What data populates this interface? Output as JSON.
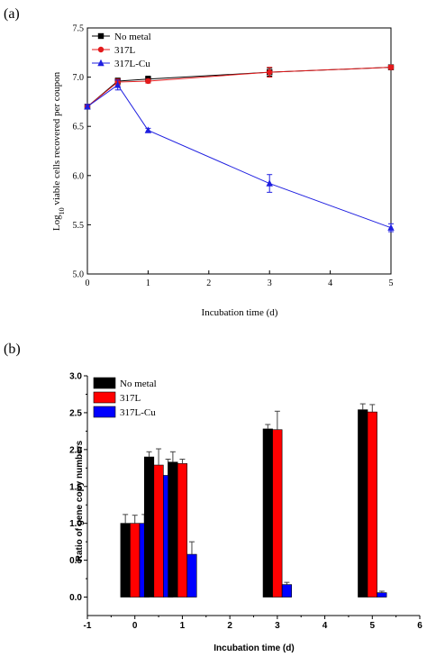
{
  "chart_data": [
    {
      "panel_label": "(a)",
      "type": "line",
      "xlabel": "Incubation time (d)",
      "ylabel": "Log10 viable cells recovered per coupon",
      "ylabel_main": "Log",
      "ylabel_sub": "10",
      "ylabel_rest": " viable cells recovered per coupon",
      "xlim": [
        0,
        5
      ],
      "ylim": [
        5.0,
        7.5
      ],
      "xticks": [
        0,
        1,
        2,
        3,
        4,
        5
      ],
      "yticks": [
        5.0,
        5.5,
        6.0,
        6.5,
        7.0,
        7.5
      ],
      "legend_position": "top-left",
      "series": [
        {
          "name": "No metal",
          "color": "#000000",
          "marker": "square",
          "x": [
            0,
            0.5,
            1,
            3,
            5
          ],
          "y": [
            6.7,
            6.96,
            6.98,
            7.05,
            7.1
          ],
          "err": [
            0.02,
            0.03,
            0.03,
            0.04,
            0.02
          ]
        },
        {
          "name": "317L",
          "color": "#e31a1c",
          "marker": "circle",
          "x": [
            0,
            0.5,
            1,
            3,
            5
          ],
          "y": [
            6.7,
            6.95,
            6.96,
            7.05,
            7.1
          ],
          "err": [
            0.02,
            0.03,
            0.02,
            0.05,
            0.02
          ]
        },
        {
          "name": "317L-Cu",
          "color": "#1f1fe0",
          "marker": "triangle",
          "x": [
            0,
            0.5,
            1,
            3,
            5
          ],
          "y": [
            6.7,
            6.92,
            6.46,
            5.92,
            5.47
          ],
          "err": [
            0.02,
            0.05,
            0.02,
            0.09,
            0.04
          ]
        }
      ]
    },
    {
      "panel_label": "(b)",
      "type": "bar",
      "xlabel": "Incubation time (d)",
      "ylabel": "Ratio of gene copy numbers",
      "xlim": [
        -1,
        6
      ],
      "ylim": [
        -0.25,
        3.0
      ],
      "xticks": [
        -1,
        0,
        1,
        2,
        3,
        4,
        5,
        6
      ],
      "yticks": [
        0.0,
        0.5,
        1.0,
        1.5,
        2.0,
        2.5,
        3.0
      ],
      "ytick_labels": [
        "0.0",
        "0.5",
        "1.0",
        "1.5",
        "2.0",
        "2.5",
        "3.0"
      ],
      "legend_position": "top-left",
      "bar_width_days": 0.2,
      "categories": [
        0,
        0.5,
        1,
        3,
        5
      ],
      "series": [
        {
          "name": "No metal",
          "color": "#000000",
          "values": [
            1.0,
            1.9,
            1.83,
            2.28,
            2.54
          ],
          "err": [
            0.12,
            0.07,
            0.14,
            0.06,
            0.08
          ]
        },
        {
          "name": "317L",
          "color": "#ff0000",
          "values": [
            1.0,
            1.79,
            1.81,
            2.27,
            2.51
          ],
          "err": [
            0.11,
            0.22,
            0.06,
            0.25,
            0.1
          ]
        },
        {
          "name": "317L-Cu",
          "color": "#0000ff",
          "values": [
            1.0,
            1.65,
            null,
            0.17,
            0.06
          ],
          "err": [
            0.12,
            0.22,
            null,
            0.03,
            0.02
          ]
        },
        {
          "name": "317L-Cu (day 1)",
          "hidden_name": true,
          "color": "#0000ff",
          "values": [
            null,
            null,
            0.58,
            null,
            null
          ],
          "err": [
            null,
            null,
            0.17,
            null,
            null
          ]
        }
      ]
    }
  ]
}
